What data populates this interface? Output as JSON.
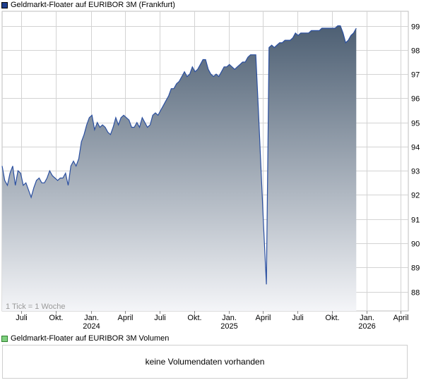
{
  "price_legend": {
    "label": "Geldmarkt-Floater auf EURIBOR 3M (Frankfurt)",
    "color": "#1f3f8f"
  },
  "volume_legend": {
    "label": "Geldmarkt-Floater auf EURIBOR 3M Volumen",
    "color": "#7fd07f"
  },
  "tick_note": "1 Tick = 1 Woche",
  "volume_message": "keine Volumendaten vorhanden",
  "colors": {
    "line": "#2a4fa0",
    "fill_top": "#4d5f73",
    "fill_bottom": "#f4f5f8",
    "grid": "#d3d3d3"
  },
  "chart_data": {
    "type": "area",
    "xlabel": "",
    "ylabel": "",
    "ylim": [
      87.2,
      99.6
    ],
    "xlim": [
      "2023-05-11",
      "2026-04-21"
    ],
    "y_ticks": [
      88,
      89,
      90,
      91,
      92,
      93,
      94,
      95,
      96,
      97,
      98,
      99
    ],
    "x_ticks": [
      {
        "label": "Juli",
        "year": "",
        "date": "2023-07-01"
      },
      {
        "label": "Okt.",
        "year": "",
        "date": "2023-10-01"
      },
      {
        "label": "Jan.",
        "year": "2024",
        "date": "2024-01-01"
      },
      {
        "label": "April",
        "year": "",
        "date": "2024-04-01"
      },
      {
        "label": "Juli",
        "year": "",
        "date": "2024-07-01"
      },
      {
        "label": "Okt.",
        "year": "",
        "date": "2024-10-01"
      },
      {
        "label": "Jan.",
        "year": "2025",
        "date": "2025-01-01"
      },
      {
        "label": "April",
        "year": "",
        "date": "2025-04-01"
      },
      {
        "label": "Juli",
        "year": "",
        "date": "2025-07-01"
      },
      {
        "label": "Okt.",
        "year": "",
        "date": "2025-10-01"
      },
      {
        "label": "Jan.",
        "year": "2026",
        "date": "2026-01-01"
      },
      {
        "label": "April",
        "year": "",
        "date": "2026-04-01"
      }
    ],
    "grid": true,
    "series": [
      {
        "points": [
          [
            "2023-05-11",
            93.2
          ],
          [
            "2023-05-18",
            92.6
          ],
          [
            "2023-05-25",
            92.4
          ],
          [
            "2023-06-01",
            92.9
          ],
          [
            "2023-06-08",
            93.2
          ],
          [
            "2023-06-15",
            92.4
          ],
          [
            "2023-06-22",
            93.0
          ],
          [
            "2023-06-29",
            92.9
          ],
          [
            "2023-07-06",
            92.4
          ],
          [
            "2023-07-13",
            92.5
          ],
          [
            "2023-07-20",
            92.2
          ],
          [
            "2023-07-27",
            91.9
          ],
          [
            "2023-08-03",
            92.3
          ],
          [
            "2023-08-10",
            92.6
          ],
          [
            "2023-08-17",
            92.7
          ],
          [
            "2023-08-24",
            92.5
          ],
          [
            "2023-08-31",
            92.5
          ],
          [
            "2023-09-07",
            92.7
          ],
          [
            "2023-09-14",
            93.0
          ],
          [
            "2023-09-21",
            92.8
          ],
          [
            "2023-09-28",
            92.7
          ],
          [
            "2023-10-05",
            92.6
          ],
          [
            "2023-10-12",
            92.7
          ],
          [
            "2023-10-19",
            92.7
          ],
          [
            "2023-10-26",
            92.9
          ],
          [
            "2023-11-02",
            92.4
          ],
          [
            "2023-11-09",
            93.2
          ],
          [
            "2023-11-16",
            93.4
          ],
          [
            "2023-11-23",
            93.2
          ],
          [
            "2023-11-30",
            93.5
          ],
          [
            "2023-12-07",
            94.2
          ],
          [
            "2023-12-14",
            94.5
          ],
          [
            "2023-12-21",
            94.9
          ],
          [
            "2023-12-28",
            95.2
          ],
          [
            "2024-01-04",
            95.3
          ],
          [
            "2024-01-11",
            94.7
          ],
          [
            "2024-01-18",
            95.0
          ],
          [
            "2024-01-25",
            94.8
          ],
          [
            "2024-02-01",
            94.9
          ],
          [
            "2024-02-08",
            94.8
          ],
          [
            "2024-02-15",
            94.6
          ],
          [
            "2024-02-22",
            94.5
          ],
          [
            "2024-02-29",
            94.8
          ],
          [
            "2024-03-07",
            95.2
          ],
          [
            "2024-03-14",
            94.9
          ],
          [
            "2024-03-21",
            95.2
          ],
          [
            "2024-03-28",
            95.3
          ],
          [
            "2024-04-04",
            95.2
          ],
          [
            "2024-04-11",
            95.1
          ],
          [
            "2024-04-18",
            94.8
          ],
          [
            "2024-04-25",
            94.8
          ],
          [
            "2024-05-02",
            95.0
          ],
          [
            "2024-05-09",
            94.8
          ],
          [
            "2024-05-16",
            95.2
          ],
          [
            "2024-05-23",
            95.0
          ],
          [
            "2024-05-30",
            94.8
          ],
          [
            "2024-06-06",
            94.9
          ],
          [
            "2024-06-13",
            95.3
          ],
          [
            "2024-06-20",
            95.4
          ],
          [
            "2024-06-27",
            95.3
          ],
          [
            "2024-07-04",
            95.5
          ],
          [
            "2024-07-11",
            95.7
          ],
          [
            "2024-07-18",
            95.9
          ],
          [
            "2024-07-25",
            96.1
          ],
          [
            "2024-08-01",
            96.4
          ],
          [
            "2024-08-08",
            96.4
          ],
          [
            "2024-08-15",
            96.6
          ],
          [
            "2024-08-22",
            96.7
          ],
          [
            "2024-08-29",
            96.9
          ],
          [
            "2024-09-05",
            97.1
          ],
          [
            "2024-09-12",
            96.9
          ],
          [
            "2024-09-19",
            97.0
          ],
          [
            "2024-09-26",
            97.3
          ],
          [
            "2024-10-03",
            97.1
          ],
          [
            "2024-10-10",
            97.2
          ],
          [
            "2024-10-17",
            97.4
          ],
          [
            "2024-10-24",
            97.6
          ],
          [
            "2024-10-31",
            97.6
          ],
          [
            "2024-11-07",
            97.2
          ],
          [
            "2024-11-14",
            97.0
          ],
          [
            "2024-11-21",
            96.9
          ],
          [
            "2024-11-28",
            97.0
          ],
          [
            "2024-12-05",
            96.9
          ],
          [
            "2024-12-12",
            97.1
          ],
          [
            "2024-12-19",
            97.3
          ],
          [
            "2024-12-26",
            97.3
          ],
          [
            "2025-01-02",
            97.4
          ],
          [
            "2025-01-09",
            97.3
          ],
          [
            "2025-01-16",
            97.2
          ],
          [
            "2025-01-23",
            97.3
          ],
          [
            "2025-01-30",
            97.4
          ],
          [
            "2025-02-06",
            97.5
          ],
          [
            "2025-02-13",
            97.5
          ],
          [
            "2025-02-20",
            97.7
          ],
          [
            "2025-02-27",
            97.8
          ],
          [
            "2025-03-06",
            97.8
          ],
          [
            "2025-03-13",
            97.8
          ],
          [
            "2025-03-20",
            95.5
          ],
          [
            "2025-03-27",
            93.0
          ],
          [
            "2025-04-03",
            90.6
          ],
          [
            "2025-04-10",
            88.3
          ],
          [
            "2025-04-17",
            98.1
          ],
          [
            "2025-04-24",
            98.2
          ],
          [
            "2025-05-01",
            98.1
          ],
          [
            "2025-05-08",
            98.2
          ],
          [
            "2025-05-15",
            98.3
          ],
          [
            "2025-05-22",
            98.3
          ],
          [
            "2025-05-29",
            98.4
          ],
          [
            "2025-06-05",
            98.4
          ],
          [
            "2025-06-12",
            98.4
          ],
          [
            "2025-06-19",
            98.5
          ],
          [
            "2025-06-26",
            98.7
          ],
          [
            "2025-07-03",
            98.6
          ],
          [
            "2025-07-10",
            98.7
          ],
          [
            "2025-07-17",
            98.7
          ],
          [
            "2025-07-24",
            98.7
          ],
          [
            "2025-07-31",
            98.7
          ],
          [
            "2025-08-07",
            98.8
          ],
          [
            "2025-08-14",
            98.8
          ],
          [
            "2025-08-21",
            98.8
          ],
          [
            "2025-08-28",
            98.8
          ],
          [
            "2025-09-04",
            98.9
          ],
          [
            "2025-09-11",
            98.9
          ],
          [
            "2025-09-18",
            98.9
          ],
          [
            "2025-09-25",
            98.9
          ],
          [
            "2025-10-02",
            98.9
          ],
          [
            "2025-10-09",
            98.9
          ],
          [
            "2025-10-16",
            99.0
          ],
          [
            "2025-10-23",
            99.0
          ],
          [
            "2025-10-30",
            98.7
          ],
          [
            "2025-11-06",
            98.3
          ],
          [
            "2025-11-13",
            98.4
          ],
          [
            "2025-11-20",
            98.6
          ],
          [
            "2025-11-27",
            98.7
          ],
          [
            "2025-12-04",
            98.9
          ]
        ]
      }
    ]
  }
}
